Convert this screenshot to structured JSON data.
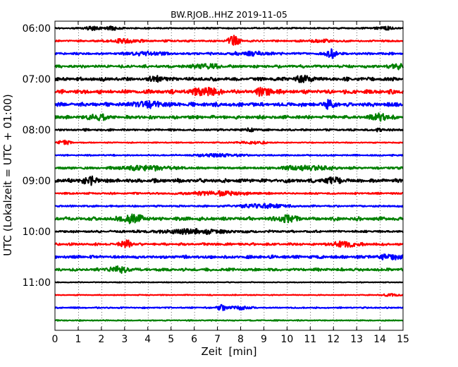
{
  "chart_data": {
    "type": "line",
    "title": "BW.RJOB..HHZ 2019-11-05",
    "xlabel": "Zeit  [min]",
    "ylabel": "UTC (Lokalzeit = UTC + 01:00)",
    "xlim": [
      0,
      15
    ],
    "x_ticks": [
      "0",
      "1",
      "2",
      "3",
      "4",
      "5",
      "6",
      "7",
      "8",
      "9",
      "10",
      "11",
      "12",
      "13",
      "14",
      "15"
    ],
    "y_ticks": [
      "06:00",
      "07:00",
      "08:00",
      "09:00",
      "10:00",
      "11:00"
    ],
    "grid": "vertical dotted lines at each minute",
    "color_cycle": [
      "#000000",
      "#ff0000",
      "#0000ff",
      "#008000"
    ],
    "traces": [
      {
        "start": "06:00",
        "amp": 0.13,
        "events": [
          {
            "t": 1.6,
            "a": 0.28,
            "w": 0.3
          },
          {
            "t": 2.5,
            "a": 0.3,
            "w": 0.3
          },
          {
            "t": 14.2,
            "a": 0.2,
            "w": 0.4
          }
        ]
      },
      {
        "start": "06:15",
        "amp": 0.17,
        "events": [
          {
            "t": 7.7,
            "a": 0.75,
            "w": 0.25
          },
          {
            "t": 3.0,
            "a": 0.25,
            "w": 0.6
          },
          {
            "t": 11.5,
            "a": 0.2,
            "w": 0.5
          }
        ]
      },
      {
        "start": "06:30",
        "amp": 0.2,
        "events": [
          {
            "t": 11.9,
            "a": 0.9,
            "w": 0.2
          },
          {
            "t": 4.0,
            "a": 0.25,
            "w": 0.8
          },
          {
            "t": 8.5,
            "a": 0.25,
            "w": 0.8
          }
        ]
      },
      {
        "start": "06:45",
        "amp": 0.26,
        "events": [
          {
            "t": 14.8,
            "a": 0.35,
            "w": 0.3
          },
          {
            "t": 6.5,
            "a": 0.3,
            "w": 0.6
          }
        ]
      },
      {
        "start": "07:00",
        "amp": 0.33,
        "events": [
          {
            "t": 4.5,
            "a": 0.45,
            "w": 0.4
          },
          {
            "t": 10.8,
            "a": 0.45,
            "w": 0.4
          }
        ]
      },
      {
        "start": "07:15",
        "amp": 0.35,
        "events": [
          {
            "t": 6.5,
            "a": 0.5,
            "w": 0.6
          },
          {
            "t": 9.0,
            "a": 0.45,
            "w": 0.4
          }
        ]
      },
      {
        "start": "07:30",
        "amp": 0.36,
        "events": [
          {
            "t": 11.8,
            "a": 0.55,
            "w": 0.25
          },
          {
            "t": 4.0,
            "a": 0.45,
            "w": 0.6
          }
        ]
      },
      {
        "start": "07:45",
        "amp": 0.3,
        "events": [
          {
            "t": 14.0,
            "a": 0.5,
            "w": 0.3
          },
          {
            "t": 1.8,
            "a": 0.4,
            "w": 0.4
          }
        ]
      },
      {
        "start": "08:00",
        "amp": 0.18,
        "events": [
          {
            "t": 8.4,
            "a": 0.35,
            "w": 0.15
          },
          {
            "t": 14.0,
            "a": 0.3,
            "w": 0.15
          }
        ]
      },
      {
        "start": "08:15",
        "amp": 0.1,
        "events": [
          {
            "t": 0.4,
            "a": 0.35,
            "w": 0.25
          },
          {
            "t": 8.5,
            "a": 0.2,
            "w": 0.6
          }
        ]
      },
      {
        "start": "08:30",
        "amp": 0.13,
        "events": [
          {
            "t": 7.0,
            "a": 0.2,
            "w": 1.0
          }
        ]
      },
      {
        "start": "08:45",
        "amp": 0.2,
        "events": [
          {
            "t": 4.0,
            "a": 0.3,
            "w": 1.2
          },
          {
            "t": 11.0,
            "a": 0.3,
            "w": 1.2
          }
        ]
      },
      {
        "start": "09:00",
        "amp": 0.33,
        "events": [
          {
            "t": 1.5,
            "a": 0.45,
            "w": 0.4
          },
          {
            "t": 12.0,
            "a": 0.45,
            "w": 0.4
          }
        ]
      },
      {
        "start": "09:15",
        "amp": 0.17,
        "events": [
          {
            "t": 7.0,
            "a": 0.28,
            "w": 1.2
          }
        ]
      },
      {
        "start": "09:30",
        "amp": 0.16,
        "events": [
          {
            "t": 9.0,
            "a": 0.28,
            "w": 1.0
          }
        ]
      },
      {
        "start": "09:45",
        "amp": 0.33,
        "events": [
          {
            "t": 3.3,
            "a": 0.55,
            "w": 0.5
          },
          {
            "t": 10.0,
            "a": 0.45,
            "w": 0.4
          }
        ]
      },
      {
        "start": "10:00",
        "amp": 0.2,
        "events": [
          {
            "t": 6.0,
            "a": 0.3,
            "w": 1.5
          }
        ]
      },
      {
        "start": "10:15",
        "amp": 0.22,
        "events": [
          {
            "t": 3.1,
            "a": 0.6,
            "w": 0.25
          },
          {
            "t": 12.5,
            "a": 0.35,
            "w": 0.6
          }
        ]
      },
      {
        "start": "10:30",
        "amp": 0.28,
        "events": [
          {
            "t": 14.5,
            "a": 0.35,
            "w": 0.5
          }
        ]
      },
      {
        "start": "10:45",
        "amp": 0.26,
        "events": [
          {
            "t": 2.8,
            "a": 0.4,
            "w": 0.5
          }
        ]
      },
      {
        "start": "11:00",
        "amp": 0.07,
        "events": []
      },
      {
        "start": "11:15",
        "amp": 0.08,
        "events": [
          {
            "t": 14.5,
            "a": 0.15,
            "w": 0.5
          }
        ]
      },
      {
        "start": "11:30",
        "amp": 0.12,
        "events": [
          {
            "t": 7.2,
            "a": 0.42,
            "w": 0.2
          },
          {
            "t": 8.0,
            "a": 0.25,
            "w": 0.4
          }
        ]
      },
      {
        "start": "11:45",
        "amp": 0.1,
        "events": []
      }
    ]
  }
}
